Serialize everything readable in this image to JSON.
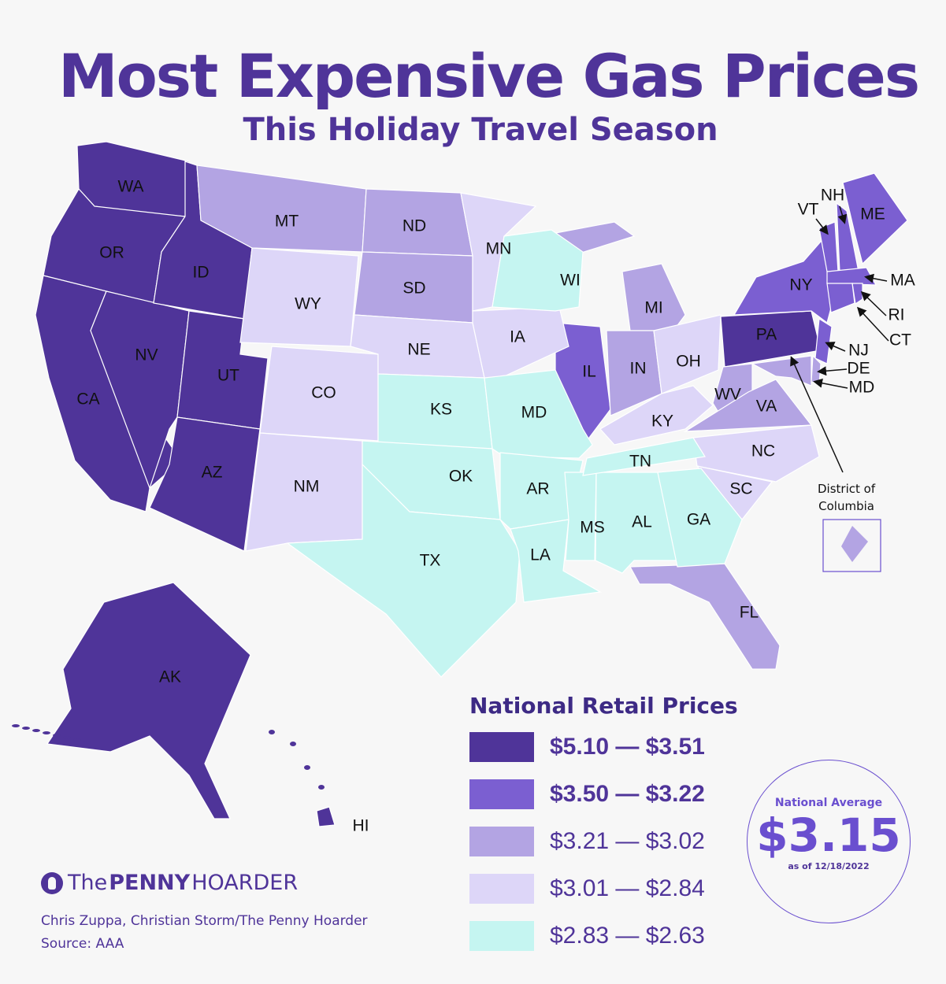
{
  "title": "Most Expensive Gas Prices",
  "subtitle": "This Holiday Travel Season",
  "colors": {
    "tier1": "#4f3499",
    "tier2": "#7b5fd1",
    "tier3": "#b3a4e3",
    "tier4": "#ddd6f8",
    "tier5": "#c5f5f1"
  },
  "states": [
    {
      "code": "WA",
      "tier": 1
    },
    {
      "code": "OR",
      "tier": 1
    },
    {
      "code": "CA",
      "tier": 1
    },
    {
      "code": "NV",
      "tier": 1
    },
    {
      "code": "ID",
      "tier": 1
    },
    {
      "code": "UT",
      "tier": 1
    },
    {
      "code": "AZ",
      "tier": 1
    },
    {
      "code": "AK",
      "tier": 1
    },
    {
      "code": "HI",
      "tier": 1
    },
    {
      "code": "PA",
      "tier": 1
    },
    {
      "code": "IL",
      "tier": 2
    },
    {
      "code": "NY",
      "tier": 2
    },
    {
      "code": "VT",
      "tier": 2
    },
    {
      "code": "NH",
      "tier": 2
    },
    {
      "code": "ME",
      "tier": 2
    },
    {
      "code": "MA",
      "tier": 2
    },
    {
      "code": "RI",
      "tier": 2
    },
    {
      "code": "CT",
      "tier": 2
    },
    {
      "code": "NJ",
      "tier": 2
    },
    {
      "code": "MT",
      "tier": 3
    },
    {
      "code": "ND",
      "tier": 3
    },
    {
      "code": "SD",
      "tier": 3
    },
    {
      "code": "MI",
      "tier": 3
    },
    {
      "code": "IN",
      "tier": 3
    },
    {
      "code": "WV",
      "tier": 3
    },
    {
      "code": "VA",
      "tier": 3
    },
    {
      "code": "FL",
      "tier": 3
    },
    {
      "code": "DE",
      "tier": 3
    },
    {
      "code": "MD",
      "tier": 3
    },
    {
      "code": "WY",
      "tier": 4
    },
    {
      "code": "CO",
      "tier": 4
    },
    {
      "code": "NM",
      "tier": 4
    },
    {
      "code": "NE",
      "tier": 4
    },
    {
      "code": "MN",
      "tier": 4
    },
    {
      "code": "IA",
      "tier": 4
    },
    {
      "code": "OH",
      "tier": 4
    },
    {
      "code": "KY",
      "tier": 4
    },
    {
      "code": "NC",
      "tier": 4
    },
    {
      "code": "SC",
      "tier": 4
    },
    {
      "code": "WI",
      "tier": 5
    },
    {
      "code": "KS",
      "tier": 5
    },
    {
      "code": "MD",
      "key": "MO",
      "tier": 5
    },
    {
      "code": "OK",
      "tier": 5
    },
    {
      "code": "TX",
      "tier": 5
    },
    {
      "code": "AR",
      "tier": 5
    },
    {
      "code": "LA",
      "tier": 5
    },
    {
      "code": "MS",
      "tier": 5
    },
    {
      "code": "AL",
      "tier": 5
    },
    {
      "code": "GA",
      "tier": 5
    },
    {
      "code": "TN",
      "tier": 5
    }
  ],
  "dc": {
    "label_line1": "District of",
    "label_line2": "Columbia",
    "tier": 3
  },
  "legend": {
    "title": "National Retail Prices",
    "items": [
      {
        "label": "$5.10 — $3.51",
        "tier": 1
      },
      {
        "label": "$3.50 — $3.22",
        "tier": 2
      },
      {
        "label": "$3.21 — $3.02",
        "tier": 3
      },
      {
        "label": "$3.01 — $2.84",
        "tier": 4
      },
      {
        "label": "$2.83 — $2.63",
        "tier": 5
      }
    ]
  },
  "national_average": {
    "label": "National Average",
    "value": "$3.15",
    "date": "as of 12/18/2022"
  },
  "brand": {
    "the": "The",
    "penny": "PENNY",
    "hoarder": "HOARDER"
  },
  "credit": "Chris Zuppa, Christian Storm/The Penny Hoarder",
  "source": "Source: AAA"
}
